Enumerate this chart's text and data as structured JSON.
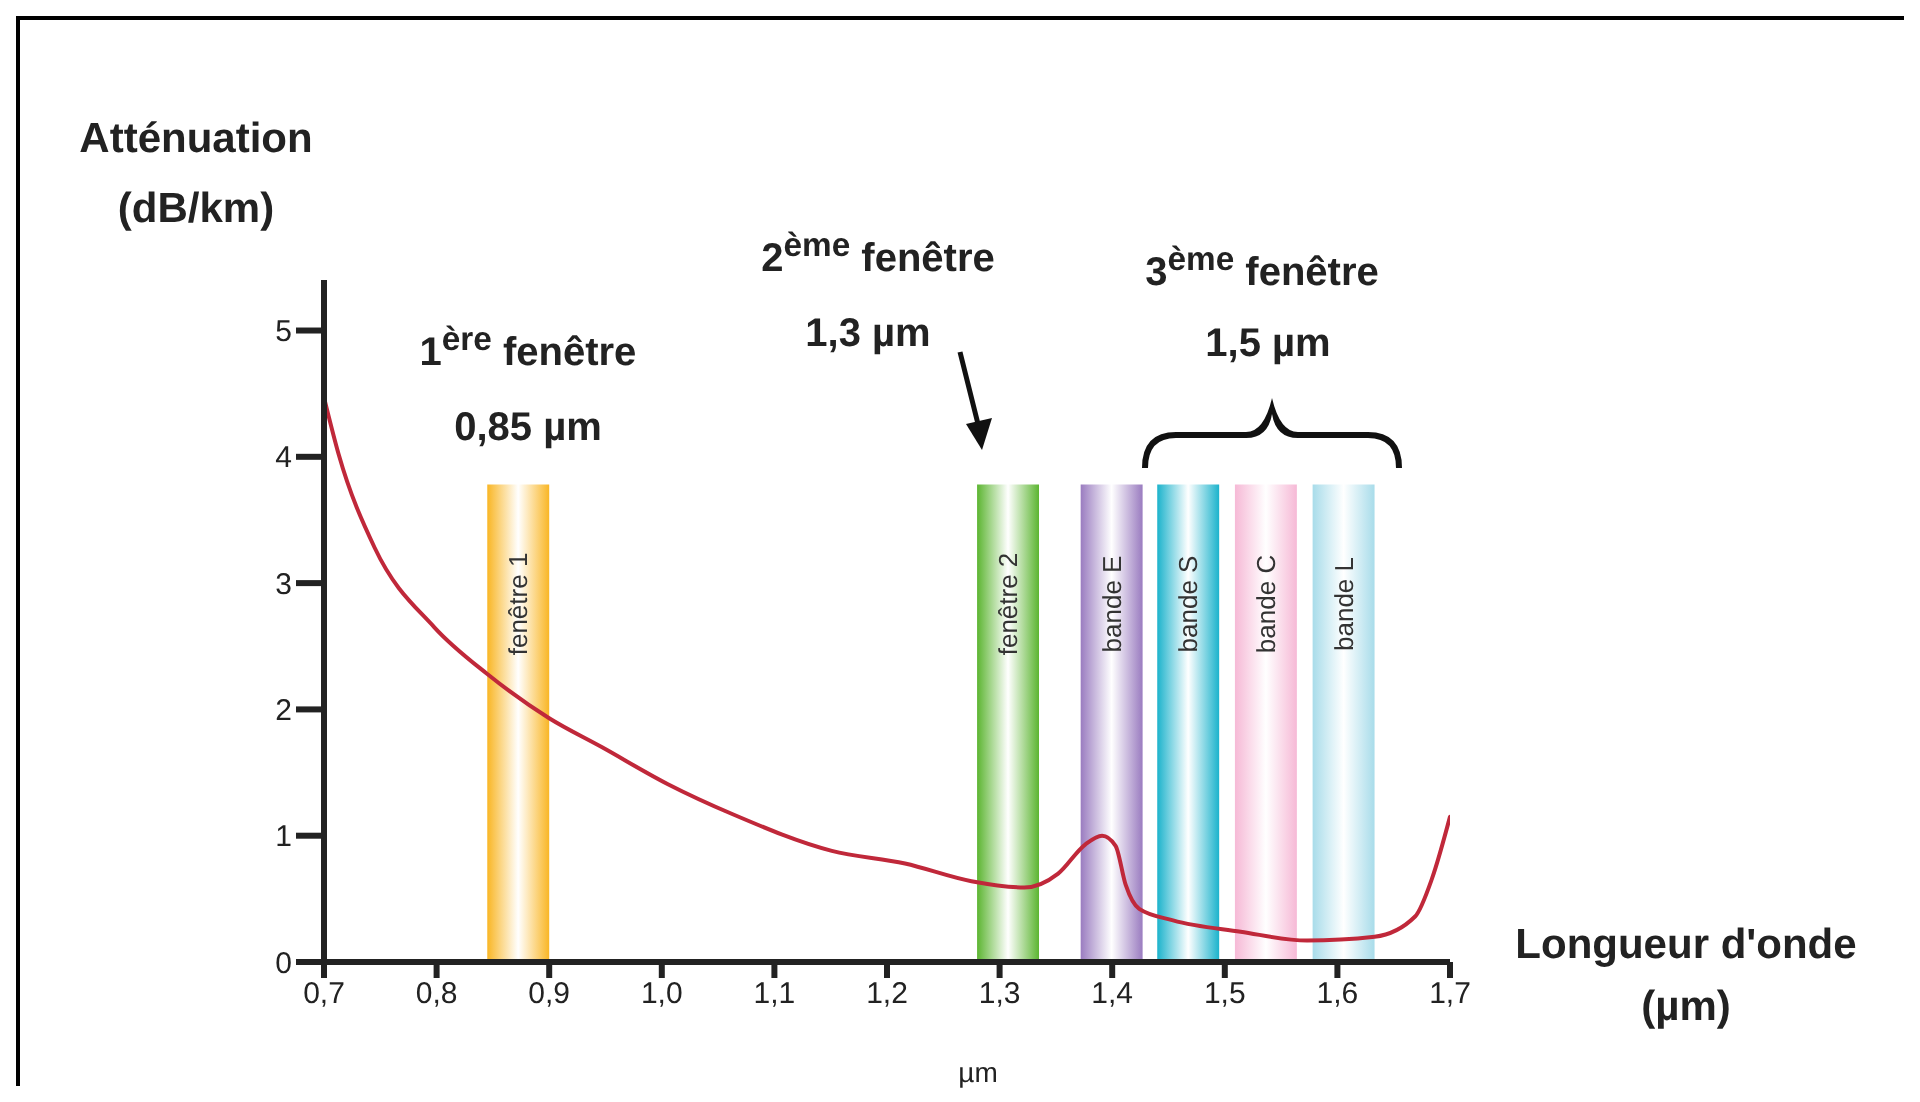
{
  "chart_data": {
    "type": "line",
    "xlabel": "Longueur d'onde (µm)",
    "ylabel": "Atténuation (dB/km)",
    "annotations": [
      "1$^{ère}$ fenêtre",
      "0,85 µm",
      "2$^{ème}$ fenêtre",
      "1,3 µm",
      "3$^{ème}$ fenêtre",
      "1,5 µm",
      "µm"
    ],
    "xlim": [
      0.7,
      1.7
    ],
    "xticks": [
      {
        "value": 0.7,
        "label": "0,7"
      },
      {
        "value": 0.8,
        "label": "0,8"
      },
      {
        "value": 0.9,
        "label": "0,9"
      },
      {
        "value": 1.0,
        "label": "1,0"
      },
      {
        "value": 1.1,
        "label": "1,1"
      },
      {
        "value": 1.2,
        "label": "1,2"
      },
      {
        "value": 1.3,
        "label": "1,3"
      },
      {
        "value": 1.4,
        "label": "1,4"
      },
      {
        "value": 1.5,
        "label": "1,5"
      },
      {
        "value": 1.6,
        "label": "1,6"
      },
      {
        "value": 1.7,
        "label": "1,7"
      }
    ],
    "ylim": [
      0,
      5.4
    ],
    "yticks": [
      0,
      1,
      2,
      3,
      4,
      5
    ],
    "grid": false,
    "legend": false,
    "marker": "none",
    "line_style": "solid",
    "series": [
      {
        "color": "#c0283a",
        "x": [
          0.7,
          0.713,
          0.745,
          0.798,
          0.845,
          0.9,
          0.947,
          1.005,
          1.063,
          1.151,
          1.216,
          1.275,
          1.322,
          1.352,
          1.376,
          1.391,
          1.403,
          1.412,
          1.424,
          1.454,
          1.514,
          1.573,
          1.633,
          1.669,
          1.684,
          1.7
        ],
        "values": [
          4.47,
          4.02,
          3.28,
          2.65,
          2.28,
          1.93,
          1.7,
          1.41,
          1.17,
          0.88,
          0.78,
          0.64,
          0.59,
          0.7,
          0.93,
          1.0,
          0.92,
          0.61,
          0.42,
          0.33,
          0.24,
          0.17,
          0.2,
          0.36,
          0.66,
          1.15
        ]
      }
    ],
    "bands": [
      {
        "axis": "x",
        "from": 0.845,
        "to": 0.9,
        "label": "fenêtre 1",
        "color": "#f9b625"
      },
      {
        "axis": "x",
        "from": 1.28,
        "to": 1.335,
        "label": "fenêtre 2",
        "color": "#5cb531"
      },
      {
        "axis": "x",
        "from": 1.372,
        "to": 1.427,
        "label": "bande E",
        "color": "#9a7cc0"
      },
      {
        "axis": "x",
        "from": 1.44,
        "to": 1.495,
        "label": "bande S",
        "color": "#1cb3cc"
      },
      {
        "axis": "x",
        "from": 1.509,
        "to": 1.564,
        "label": "bande C",
        "color": "#f6b9d6"
      },
      {
        "axis": "x",
        "from": 1.578,
        "to": 1.633,
        "label": "bande L",
        "color": "#a8dcea"
      }
    ]
  }
}
